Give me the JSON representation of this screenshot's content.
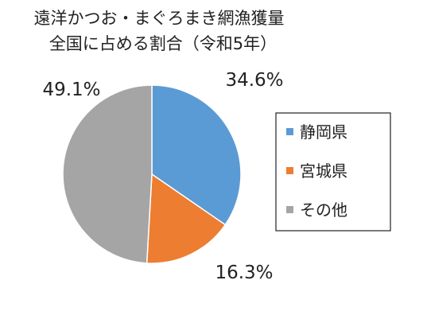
{
  "chart_data": {
    "type": "pie",
    "title_lines": [
      "遠洋かつお・まぐろまき網漁獲量",
      "全国に占める割合（令和5年）"
    ],
    "categories": [
      "静岡県",
      "宮城県",
      "その他"
    ],
    "values": [
      34.6,
      16.3,
      49.1
    ],
    "data_labels": [
      "34.6%",
      "16.3%",
      "49.1%"
    ],
    "colors": [
      "#5B9BD5",
      "#ED7D31",
      "#A5A5A5"
    ],
    "legend_position": "right",
    "start_angle": "12 o'clock",
    "direction": "clockwise"
  }
}
